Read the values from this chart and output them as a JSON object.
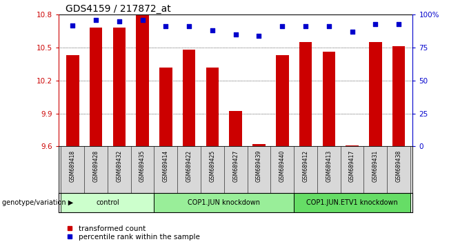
{
  "title": "GDS4159 / 217872_at",
  "samples": [
    "GSM689418",
    "GSM689428",
    "GSM689432",
    "GSM689435",
    "GSM689414",
    "GSM689422",
    "GSM689425",
    "GSM689427",
    "GSM689439",
    "GSM689440",
    "GSM689412",
    "GSM689413",
    "GSM689417",
    "GSM689431",
    "GSM689438"
  ],
  "bar_values": [
    10.43,
    10.68,
    10.68,
    10.8,
    10.32,
    10.48,
    10.32,
    9.92,
    9.62,
    10.43,
    10.55,
    10.46,
    9.61,
    10.55,
    10.51
  ],
  "dot_values": [
    92,
    96,
    95,
    96,
    91,
    91,
    88,
    85,
    84,
    91,
    91,
    91,
    87,
    93,
    93
  ],
  "ylim_left": [
    9.6,
    10.8
  ],
  "ylim_right": [
    0,
    100
  ],
  "yticks_left": [
    9.6,
    9.9,
    10.2,
    10.5,
    10.8
  ],
  "yticks_right": [
    0,
    25,
    50,
    75,
    100
  ],
  "groups": [
    {
      "label": "control",
      "start": 0,
      "end": 4,
      "color": "#ccffcc"
    },
    {
      "label": "COP1.JUN knockdown",
      "start": 4,
      "end": 10,
      "color": "#99ee99"
    },
    {
      "label": "COP1.JUN.ETV1 knockdown",
      "start": 10,
      "end": 15,
      "color": "#66dd66"
    }
  ],
  "bar_color": "#cc0000",
  "dot_color": "#0000cc",
  "bar_bottom": 9.6,
  "legend_labels": [
    "transformed count",
    "percentile rank within the sample"
  ],
  "xlabel_group": "genotype/variation",
  "background_color": "#ffffff",
  "tick_label_color_left": "#cc0000",
  "tick_label_color_right": "#0000cc",
  "sample_label_bg": "#d8d8d8"
}
